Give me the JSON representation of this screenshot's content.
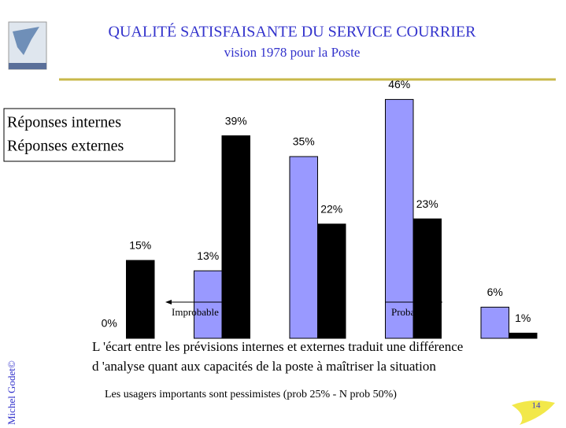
{
  "chart_data": {
    "type": "bar",
    "title": "QUALITÉ SATISFAISANTE DU SERVICE COURRIER",
    "subtitle": "vision 1978 pour la Poste",
    "categories": [
      null,
      null,
      null,
      null,
      null
    ],
    "series": [
      {
        "name": "Réponses internes",
        "color": "#9999ff",
        "values": [
          0,
          13,
          35,
          46,
          6
        ],
        "value_labels": [
          "0%",
          "13%",
          "35%",
          "46%",
          "6%"
        ]
      },
      {
        "name": "Réponses externes",
        "color": "#000000",
        "values": [
          15,
          39,
          22,
          23,
          1
        ],
        "value_labels": [
          "15%",
          "39%",
          "22%",
          "23%",
          "1%"
        ]
      }
    ],
    "annotations": [
      "Improbable",
      "Probable"
    ],
    "notes": [
      "L 'écart entre les prévisions internes et externes traduit une différence",
      "d 'analyse quant aux capacités de la poste à maîtriser la  situation",
      "Les usagers importants sont pessimistes (prob 25% - N prob 50%)"
    ],
    "author": "Michel Godet©",
    "page_number": "14"
  }
}
